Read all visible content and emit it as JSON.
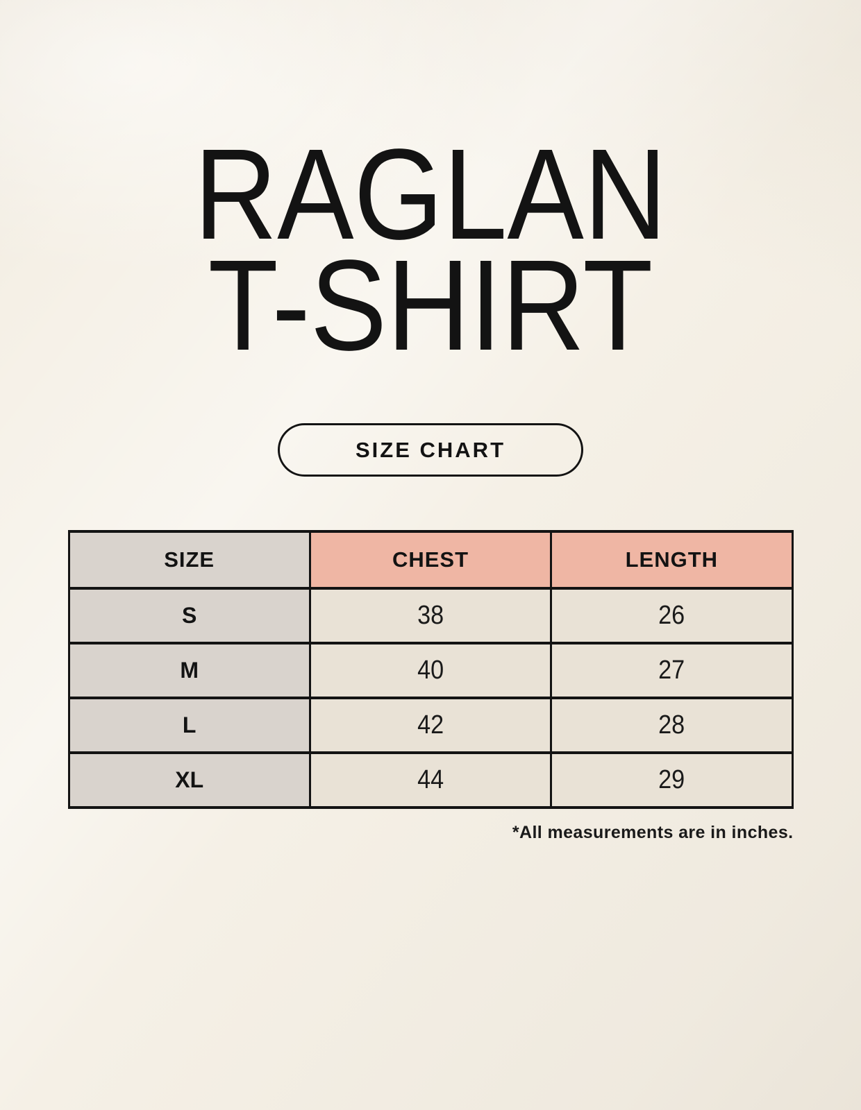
{
  "header": {
    "title_line1": "RAGLAN",
    "title_line2": "T-SHIRT",
    "badge_label": "SIZE CHART"
  },
  "chart_data": {
    "type": "table",
    "title": "RAGLAN T-SHIRT",
    "columns": [
      "SIZE",
      "CHEST",
      "LENGTH"
    ],
    "rows": [
      [
        "S",
        "38",
        "26"
      ],
      [
        "M",
        "40",
        "27"
      ],
      [
        "L",
        "42",
        "28"
      ],
      [
        "XL",
        "44",
        "29"
      ]
    ],
    "footnote": "*All measurements are in inches.",
    "units": "inches"
  },
  "colors": {
    "page_background": "#f5f0e6",
    "size_column_fill": "#d9d3cd",
    "accent_header_fill": "#efb6a4",
    "value_cell_fill": "#e9e2d6",
    "border": "#131313",
    "text": "#141414"
  }
}
